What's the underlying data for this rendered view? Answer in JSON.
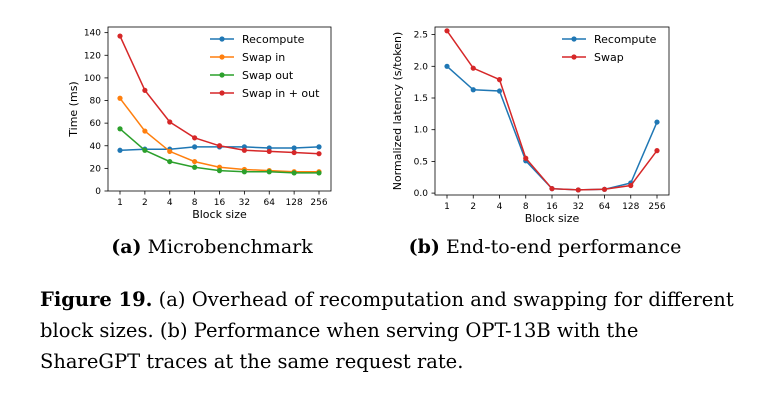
{
  "colors": {
    "recompute": "#1f77b4",
    "swap_in": "#ff7f0e",
    "swap_out": "#2ca02c",
    "swap_in_out": "#d62728"
  },
  "chart_data": [
    {
      "type": "line",
      "xlabel": "Block size",
      "ylabel": "Time (ms)",
      "x": [
        1,
        2,
        4,
        8,
        16,
        32,
        64,
        128,
        256
      ],
      "x_scale": "log2",
      "ylim": [
        0,
        145
      ],
      "yticks": [
        0,
        20,
        40,
        60,
        80,
        100,
        120,
        140
      ],
      "legend_position": "top-right",
      "series": [
        {
          "name": "Recompute",
          "color_key": "recompute",
          "values": [
            36,
            37,
            37,
            39,
            39,
            39,
            38,
            38,
            39
          ]
        },
        {
          "name": "Swap in",
          "color_key": "swap_in",
          "values": [
            82,
            53,
            35,
            26,
            21,
            19,
            18,
            17,
            17
          ]
        },
        {
          "name": "Swap out",
          "color_key": "swap_out",
          "values": [
            55,
            36,
            26,
            21,
            18,
            17,
            17,
            16,
            16
          ]
        },
        {
          "name": "Swap in + out",
          "color_key": "swap_in_out",
          "values": [
            137,
            89,
            61,
            47,
            40,
            36,
            35,
            34,
            33
          ]
        }
      ]
    },
    {
      "type": "line",
      "xlabel": "Block size",
      "ylabel": "Normalized latency (s/token)",
      "x": [
        1,
        2,
        4,
        8,
        16,
        32,
        64,
        128,
        256
      ],
      "x_scale": "log2",
      "ylim": [
        -0.03,
        2.62
      ],
      "yticks": [
        0.0,
        0.5,
        1.0,
        1.5,
        2.0,
        2.5
      ],
      "legend_position": "top-right",
      "series": [
        {
          "name": "Recompute",
          "color_key": "recompute",
          "values": [
            2.0,
            1.63,
            1.61,
            0.51,
            0.07,
            0.05,
            0.06,
            0.16,
            1.12
          ]
        },
        {
          "name": "Swap",
          "color_key": "swap_in_out",
          "values": [
            2.56,
            1.97,
            1.79,
            0.55,
            0.07,
            0.05,
            0.06,
            0.12,
            0.67
          ]
        }
      ]
    }
  ],
  "subcaptions": {
    "a_label": "(a)",
    "a_text": "Microbenchmark",
    "b_label": "(b)",
    "b_text": "End-to-end performance"
  },
  "caption": {
    "label": "Figure 19.",
    "text": "(a) Overhead of recomputation and swapping for different block sizes. (b) Performance when serving OPT-13B with the ShareGPT traces at the same request rate."
  }
}
